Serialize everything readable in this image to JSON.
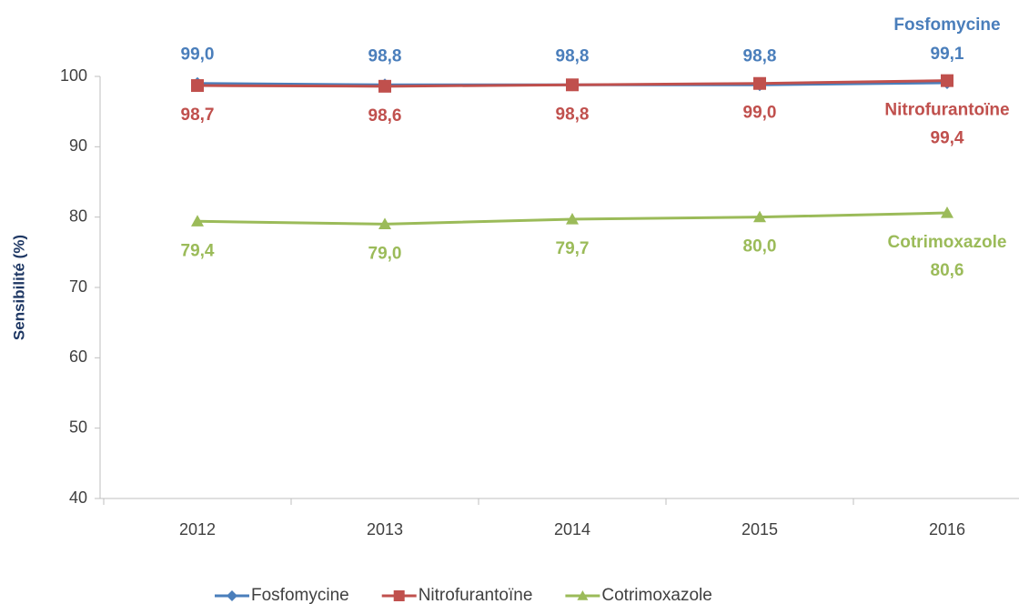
{
  "chart_data": {
    "type": "line",
    "y_label": "Sensibilité (%)",
    "categories": [
      "2012",
      "2013",
      "2014",
      "2015",
      "2016"
    ],
    "series": [
      {
        "name": "Fosfomycine",
        "color": "#4a7ebb",
        "marker": "diamond",
        "label_side": "above",
        "values": [
          99.0,
          98.8,
          98.8,
          98.8,
          99.1
        ],
        "value_labels": [
          "99,0",
          "98,8",
          "98,8",
          "98,8",
          "99,1"
        ]
      },
      {
        "name": "Nitrofurantoïne",
        "color": "#c0504d",
        "marker": "square",
        "label_side": "below",
        "values": [
          98.7,
          98.6,
          98.8,
          99.0,
          99.4
        ],
        "value_labels": [
          "98,7",
          "98,6",
          "98,8",
          "99,0",
          "99,4"
        ]
      },
      {
        "name": "Cotrimoxazole",
        "color": "#9bbb59",
        "marker": "triangle",
        "label_side": "below",
        "values": [
          79.4,
          79.0,
          79.7,
          80.0,
          80.6
        ],
        "value_labels": [
          "79,4",
          "79,0",
          "79,7",
          "80,0",
          "80,6"
        ]
      }
    ],
    "ylim": [
      40,
      100
    ],
    "yticks": [
      40,
      50,
      60,
      70,
      80,
      90,
      100
    ],
    "grid": false,
    "legend": "bottom"
  }
}
